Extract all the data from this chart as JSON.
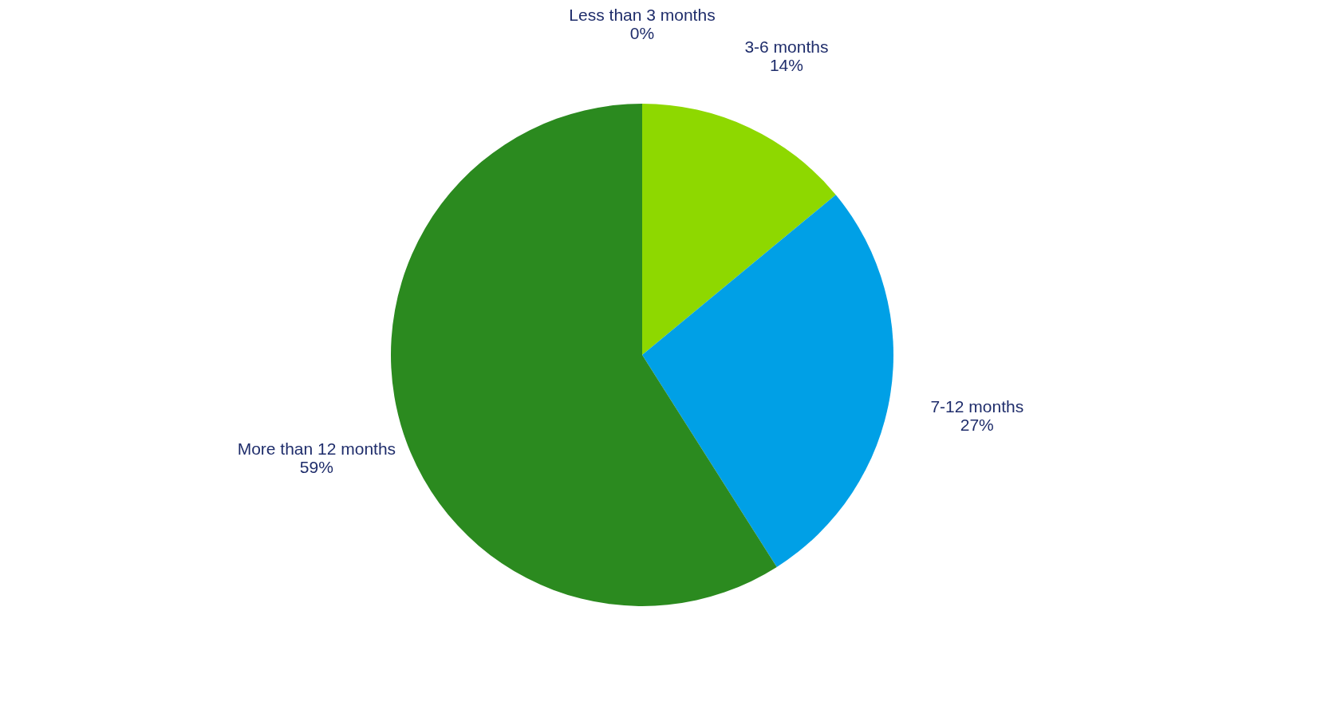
{
  "chart_data": {
    "type": "pie",
    "categories": [
      "Less than 3 months",
      "3-6 months",
      "7-12 months",
      "More than 12 months"
    ],
    "values": [
      0,
      14,
      27,
      59
    ],
    "value_labels": [
      "0%",
      "14%",
      "27%",
      "59%"
    ],
    "colors": [
      "#4f81bd",
      "#8ed800",
      "#00a0e6",
      "#2b8a1f"
    ],
    "legend": false
  }
}
